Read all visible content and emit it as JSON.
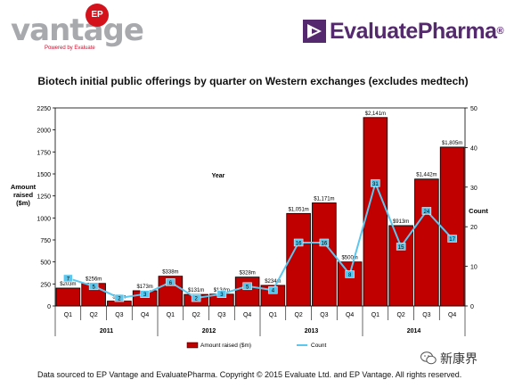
{
  "header": {
    "vantage_word": "vantage",
    "ep_badge": "EP",
    "powered_by": "Powered by Evaluate",
    "evaluate_word": "EvaluatePharma",
    "evaluate_registered": "®"
  },
  "footer": {
    "source": "Data sourced to EP Vantage and EvaluatePharma. Copyright © 2015 Evaluate Ltd. and EP Vantage. All rights reserved."
  },
  "watermark": {
    "text": "新康界",
    "icon": "wechat-icon"
  },
  "colors": {
    "bar": "#c00000",
    "bar_stroke": "#000000",
    "line": "#5bc7ee",
    "point": "#5bc7ee",
    "purple": "#55296e",
    "red": "#d4121c"
  },
  "chart_data": {
    "type": "bar",
    "title": "Biotech initial public offerings by quarter on Western exchanges (excludes medtech)",
    "categories": [
      "Q1",
      "Q2",
      "Q3",
      "Q4",
      "Q1",
      "Q2",
      "Q3",
      "Q4",
      "Q1",
      "Q2",
      "Q3",
      "Q4",
      "Q1",
      "Q2",
      "Q3",
      "Q4"
    ],
    "years": [
      {
        "label": "2011",
        "start": 0,
        "end": 3
      },
      {
        "label": "2012",
        "start": 4,
        "end": 7
      },
      {
        "label": "2013",
        "start": 8,
        "end": 11
      },
      {
        "label": "2014",
        "start": 12,
        "end": 15
      }
    ],
    "xlabel": "Year",
    "ylabel": "Amount raised ($m)",
    "y2label": "Count",
    "ylim": [
      0,
      2250
    ],
    "y2lim": [
      0,
      50
    ],
    "yticks": [
      0,
      250,
      500,
      750,
      1000,
      1250,
      1500,
      1750,
      2000,
      2250
    ],
    "y2ticks": [
      0,
      10,
      20,
      30,
      40,
      50
    ],
    "series": [
      {
        "name": "Amount raised ($m)",
        "type": "bar",
        "axis": "left",
        "values": [
          203,
          256,
          55,
          173,
          338,
          131,
          134,
          328,
          234,
          1051,
          1171,
          500,
          2141,
          913,
          1442,
          1805
        ],
        "labels": [
          "$203m",
          "$256m",
          "$55m",
          "$173m",
          "$338m",
          "$131m",
          "$134m",
          "$328m",
          "$234m",
          "$1,051m",
          "$1,171m",
          "$500m",
          "$2,141m",
          "$913m",
          "$1,442m",
          "$1,805m"
        ]
      },
      {
        "name": "Count",
        "type": "line",
        "axis": "right",
        "values": [
          7,
          5,
          2,
          3,
          6,
          2,
          3,
          5,
          4,
          16,
          16,
          8,
          31,
          15,
          24,
          17
        ]
      }
    ],
    "legend_position": "bottom"
  }
}
